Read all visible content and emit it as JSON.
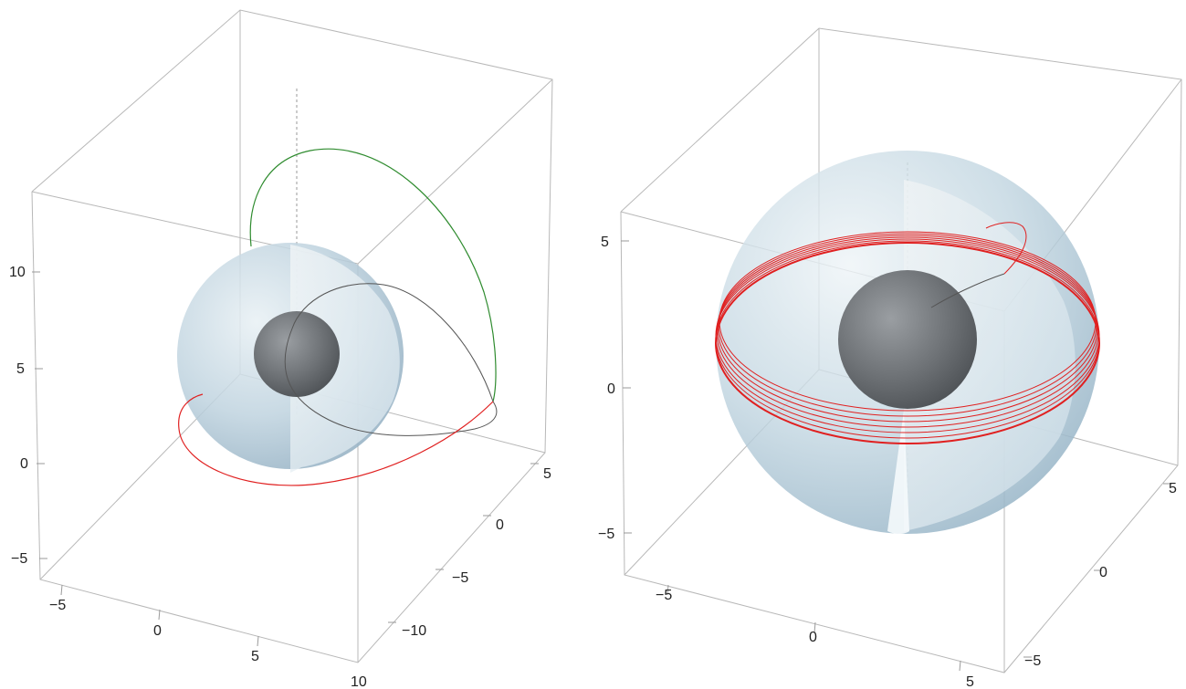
{
  "panels": [
    {
      "name": "left",
      "vertical_ticks": [
        "10",
        "5",
        "0",
        "−5"
      ],
      "bottom_ticks": [
        "−5",
        "0",
        "5",
        "10"
      ],
      "depth_ticks": [
        "5",
        "0",
        "−5",
        "−10"
      ],
      "curve_colors": {
        "first": "#2e8b2e",
        "second": "#555555",
        "third": "#e02020"
      }
    },
    {
      "name": "right",
      "vertical_ticks": [
        "5",
        "0",
        "−5"
      ],
      "bottom_ticks": [
        "−5",
        "0",
        "5"
      ],
      "depth_ticks": [
        "5",
        "0",
        "−5"
      ],
      "curve_colors": {
        "orbit": "#e02020",
        "inner": "#555555"
      }
    }
  ],
  "colors": {
    "outer_sphere": "#a9c4d4",
    "inner_sphere": "#6b6f73",
    "bounding_box": "#b8b8b8"
  }
}
